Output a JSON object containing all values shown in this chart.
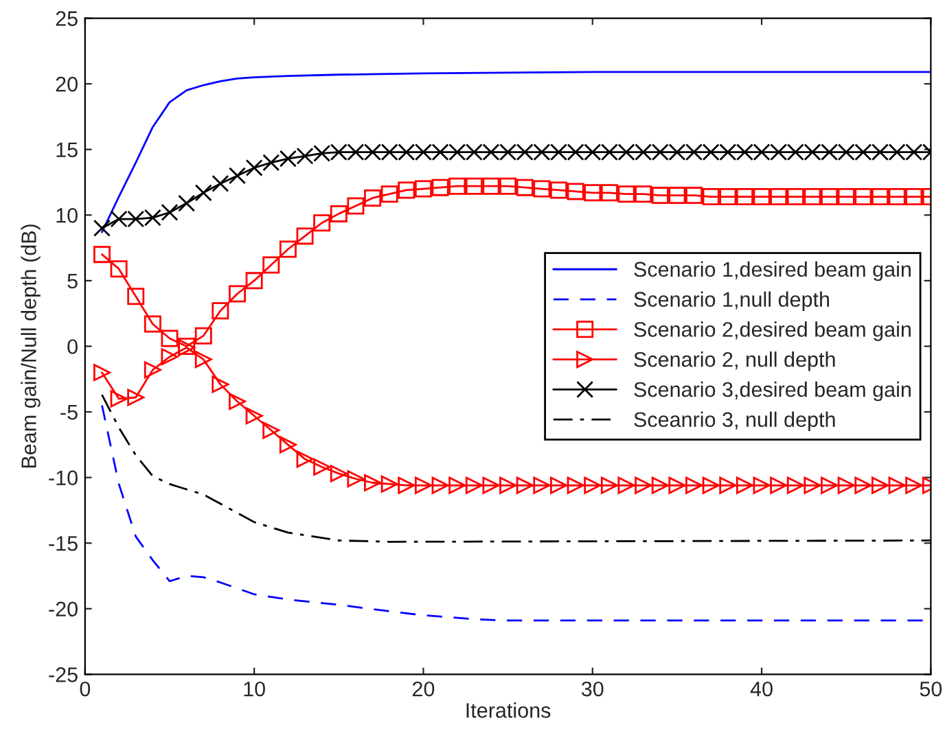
{
  "chart_data": {
    "type": "line",
    "xlabel": "Iterations",
    "ylabel": "Beam gain/Null depth (dB)",
    "xlim": [
      0,
      50
    ],
    "ylim": [
      -25,
      25
    ],
    "xticks": [
      0,
      10,
      20,
      30,
      40,
      50
    ],
    "yticks": [
      -25,
      -20,
      -15,
      -10,
      -5,
      0,
      5,
      10,
      15,
      20,
      25
    ],
    "grid": false,
    "legend": "right",
    "series": [
      {
        "name": "Scenario 1,desired beam gain",
        "color": "#0000ff",
        "line_style": "solid",
        "marker": "none",
        "x": [
          1,
          2,
          3,
          4,
          5,
          6,
          7,
          8,
          9,
          10,
          12,
          15,
          20,
          30,
          50
        ],
        "values": [
          8.7,
          11.4,
          14.0,
          16.7,
          18.6,
          19.5,
          19.9,
          20.2,
          20.4,
          20.5,
          20.6,
          20.7,
          20.8,
          20.9,
          20.9
        ]
      },
      {
        "name": "Scenario 1,null depth",
        "color": "#0000ff",
        "line_style": "dashed",
        "marker": "none",
        "x": [
          1,
          2,
          3,
          4,
          5,
          6,
          7,
          8,
          10,
          12,
          15,
          18,
          20,
          23,
          25,
          50
        ],
        "values": [
          -4.5,
          -10.5,
          -14.5,
          -16.3,
          -17.9,
          -17.5,
          -17.6,
          -18.0,
          -18.9,
          -19.3,
          -19.7,
          -20.2,
          -20.5,
          -20.8,
          -20.9,
          -20.9
        ]
      },
      {
        "name": "Scenario 2,desired beam gain",
        "color": "#ff0000",
        "line_style": "solid",
        "marker": "square",
        "x": [
          1,
          2,
          3,
          4,
          5,
          6,
          7,
          8,
          9,
          10,
          11,
          12,
          13,
          14,
          15,
          16,
          17,
          18,
          19,
          20,
          21,
          22,
          23,
          24,
          25,
          26,
          27,
          28,
          29,
          30,
          31,
          32,
          33,
          34,
          35,
          36,
          37,
          38,
          39,
          40,
          41,
          42,
          43,
          44,
          45,
          46,
          47,
          48,
          49,
          50
        ],
        "values": [
          7.0,
          5.9,
          3.8,
          1.7,
          0.6,
          0.0,
          0.8,
          2.7,
          4.0,
          5.0,
          6.2,
          7.4,
          8.4,
          9.4,
          10.1,
          10.7,
          11.3,
          11.6,
          11.9,
          12.0,
          12.1,
          12.2,
          12.2,
          12.2,
          12.2,
          12.1,
          12.0,
          11.9,
          11.8,
          11.7,
          11.7,
          11.6,
          11.6,
          11.5,
          11.5,
          11.5,
          11.4,
          11.4,
          11.4,
          11.4,
          11.4,
          11.4,
          11.4,
          11.4,
          11.4,
          11.4,
          11.4,
          11.4,
          11.4,
          11.4
        ]
      },
      {
        "name": "Scenario 2, null depth",
        "color": "#ff0000",
        "line_style": "solid",
        "marker": "triangle",
        "x": [
          1,
          2,
          3,
          4,
          5,
          6,
          7,
          8,
          9,
          10,
          11,
          12,
          13,
          14,
          15,
          16,
          17,
          18,
          19,
          20,
          21,
          22,
          23,
          24,
          25,
          26,
          27,
          28,
          29,
          30,
          31,
          32,
          33,
          34,
          35,
          36,
          37,
          38,
          39,
          40,
          41,
          42,
          43,
          44,
          45,
          46,
          47,
          48,
          49,
          50
        ],
        "values": [
          -2.0,
          -4.0,
          -3.9,
          -1.8,
          -0.8,
          -0.1,
          -1.0,
          -2.9,
          -4.2,
          -5.3,
          -6.4,
          -7.5,
          -8.6,
          -9.2,
          -9.7,
          -10.1,
          -10.4,
          -10.5,
          -10.6,
          -10.6,
          -10.6,
          -10.6,
          -10.6,
          -10.6,
          -10.6,
          -10.6,
          -10.6,
          -10.6,
          -10.6,
          -10.6,
          -10.6,
          -10.6,
          -10.6,
          -10.6,
          -10.6,
          -10.6,
          -10.6,
          -10.6,
          -10.6,
          -10.6,
          -10.6,
          -10.6,
          -10.6,
          -10.6,
          -10.6,
          -10.6,
          -10.6,
          -10.6,
          -10.6,
          -10.6
        ]
      },
      {
        "name": "Scenario 3,desired beam gain",
        "color": "#000000",
        "line_style": "solid",
        "marker": "cross",
        "x": [
          1,
          2,
          3,
          4,
          5,
          6,
          7,
          8,
          9,
          10,
          11,
          12,
          13,
          14,
          15,
          16,
          17,
          18,
          19,
          20,
          21,
          22,
          23,
          24,
          25,
          26,
          27,
          28,
          29,
          30,
          31,
          32,
          33,
          34,
          35,
          36,
          37,
          38,
          39,
          40,
          41,
          42,
          43,
          44,
          45,
          46,
          47,
          48,
          49,
          50
        ],
        "values": [
          9.0,
          9.7,
          9.7,
          9.8,
          10.2,
          10.9,
          11.7,
          12.4,
          13.0,
          13.6,
          14.0,
          14.3,
          14.5,
          14.7,
          14.8,
          14.8,
          14.8,
          14.8,
          14.8,
          14.8,
          14.8,
          14.8,
          14.8,
          14.8,
          14.8,
          14.8,
          14.8,
          14.8,
          14.8,
          14.8,
          14.8,
          14.8,
          14.8,
          14.8,
          14.8,
          14.8,
          14.8,
          14.8,
          14.8,
          14.8,
          14.8,
          14.8,
          14.8,
          14.8,
          14.8,
          14.8,
          14.8,
          14.8,
          14.8,
          14.8
        ]
      },
      {
        "name": "Sceanrio 3, null depth",
        "color": "#000000",
        "line_style": "dashdot",
        "marker": "none",
        "x": [
          1,
          2,
          3,
          4,
          5,
          7,
          10,
          12,
          15,
          18,
          50
        ],
        "values": [
          -3.7,
          -6.2,
          -8.3,
          -9.9,
          -10.5,
          -11.3,
          -13.4,
          -14.2,
          -14.8,
          -14.9,
          -14.8
        ]
      }
    ]
  }
}
